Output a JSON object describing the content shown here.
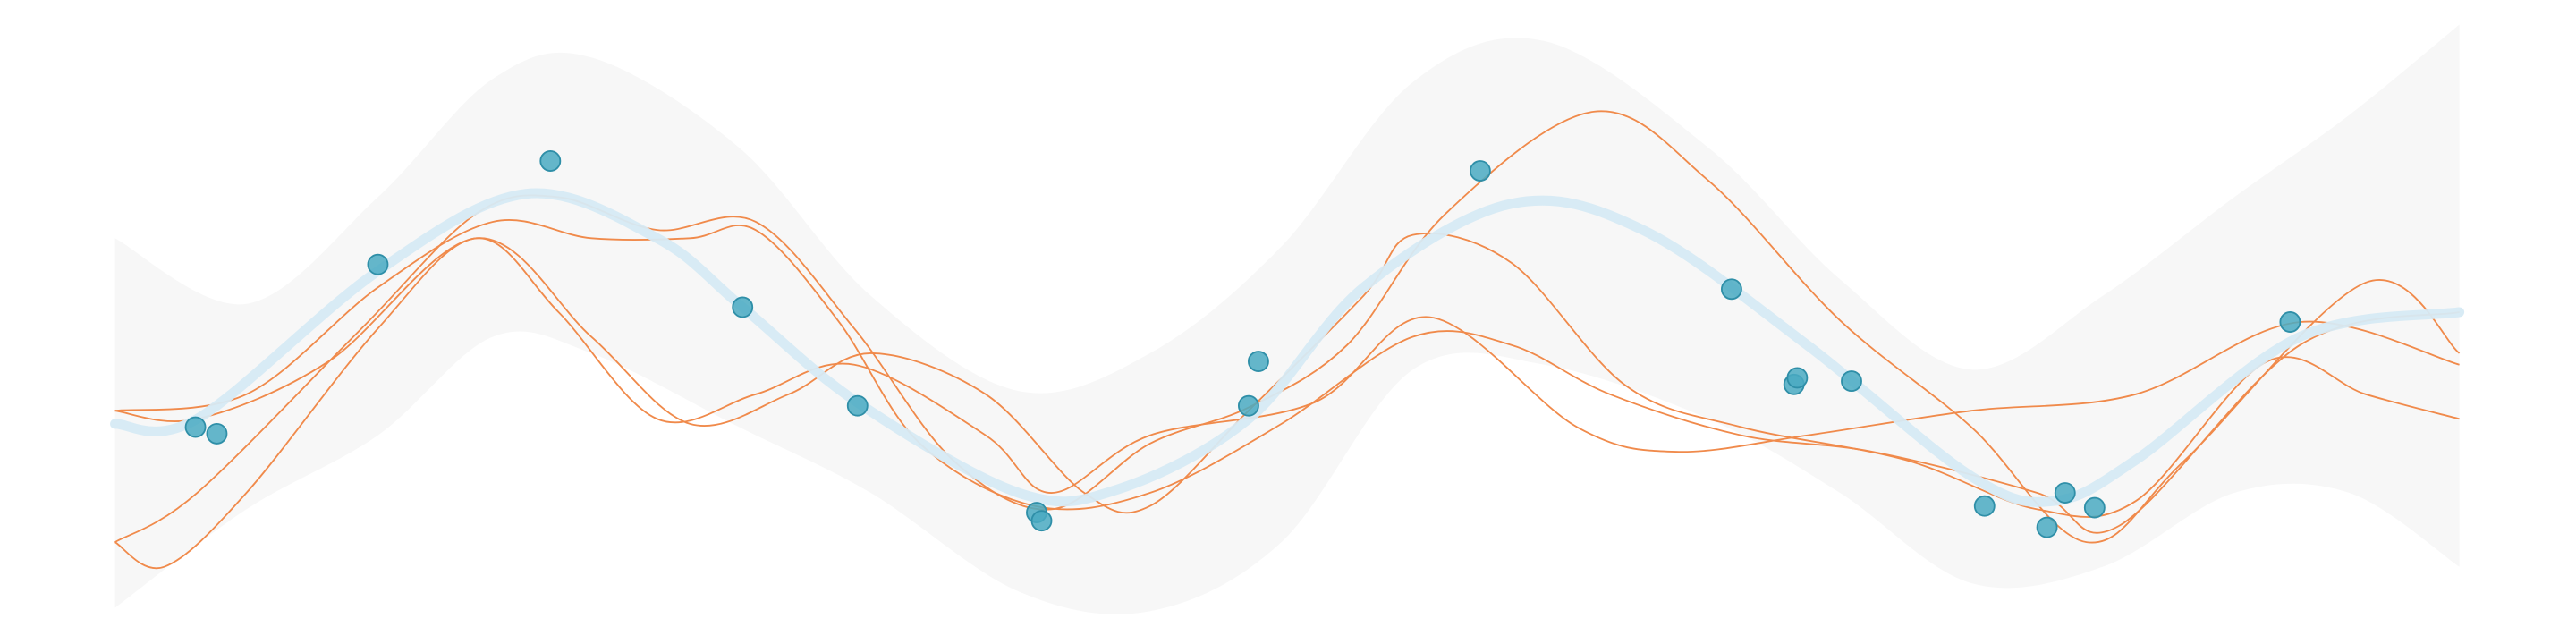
{
  "chart_data": {
    "type": "gp",
    "xlim": [
      0,
      1568
    ],
    "ylim": [
      0,
      392
    ],
    "band": {
      "color": "#f7f7f7",
      "x": [
        70,
        150,
        230,
        300,
        360,
        450,
        530,
        620,
        700,
        780,
        860,
        940,
        1040,
        1120,
        1200,
        1280,
        1360,
        1430,
        1497
      ],
      "upper": [
        247,
        207,
        272,
        344,
        357,
        302,
        212,
        154,
        177,
        242,
        342,
        367,
        302,
        222,
        167,
        212,
        272,
        322,
        377
      ],
      "lower": [
        22,
        82,
        127,
        187,
        177,
        132,
        92,
        32,
        20,
        62,
        167,
        170,
        137,
        92,
        37,
        47,
        92,
        92,
        47
      ]
    },
    "mean": {
      "color": "#d6eaf4",
      "x": [
        70,
        120,
        230,
        320,
        400,
        452,
        522,
        620,
        680,
        760,
        830,
        920,
        1000,
        1100,
        1200,
        1250,
        1300,
        1400,
        1497
      ],
      "values": [
        134,
        137,
        227,
        274,
        247,
        205,
        147,
        92,
        94,
        137,
        217,
        268,
        252,
        182,
        102,
        87,
        112,
        187,
        202
      ]
    },
    "samples": [
      {
        "color": "#f08a4b",
        "x": [
          70,
          120,
          220,
          290,
          340,
          400,
          460,
          520,
          580,
          640,
          700,
          760,
          820,
          880,
          970,
          1040,
          1120,
          1200,
          1270,
          1330,
          1440,
          1497
        ],
        "values": [
          62,
          92,
          192,
          262,
          272,
          252,
          257,
          192,
          112,
          82,
          122,
          144,
          182,
          262,
          324,
          282,
          197,
          132,
          62,
          112,
          220,
          177
        ]
      },
      {
        "color": "#f08a4b",
        "x": [
          70,
          120,
          200,
          290,
          360,
          420,
          480,
          530,
          600,
          660,
          700,
          760,
          830,
          860,
          920,
          990,
          1060,
          1160,
          1240,
          1300,
          1380,
          1440,
          1497
        ],
        "values": [
          142,
          137,
          172,
          247,
          187,
          134,
          152,
          177,
          152,
          92,
          84,
          142,
          212,
          249,
          232,
          157,
          132,
          112,
          82,
          87,
          172,
          152,
          137
        ]
      },
      {
        "color": "#f08a4b",
        "x": [
          70,
          100,
          150,
          230,
          290,
          340,
          400,
          460,
          520,
          600,
          640,
          700,
          800,
          870,
          960,
          1020,
          1100,
          1200,
          1300,
          1400,
          1497
        ],
        "values": [
          62,
          47,
          92,
          192,
          247,
          202,
          137,
          152,
          170,
          127,
          92,
          127,
          147,
          199,
          132,
          117,
          127,
          142,
          152,
          196,
          170
        ]
      },
      {
        "color": "#f08a4b",
        "x": [
          70,
          150,
          230,
          300,
          360,
          420,
          460,
          510,
          560,
          630,
          700,
          780,
          860,
          920,
          980,
          1060,
          1140,
          1240,
          1290,
          1400,
          1497
        ],
        "values": [
          142,
          152,
          217,
          257,
          247,
          247,
          252,
          197,
          122,
          84,
          92,
          134,
          187,
          182,
          152,
          127,
          117,
          92,
          72,
          182,
          202
        ]
      }
    ],
    "points": {
      "color": "#4aaac2",
      "x": [
        119,
        132,
        230,
        335,
        452,
        522,
        631,
        634,
        766,
        760,
        901,
        1054,
        1092,
        1094,
        1127,
        1208,
        1246,
        1257,
        1275,
        1394
      ],
      "values": [
        132,
        128,
        231,
        294,
        205,
        145,
        80,
        75,
        172,
        145,
        288,
        216,
        158,
        162,
        160,
        84,
        71,
        92,
        83,
        196
      ]
    }
  }
}
